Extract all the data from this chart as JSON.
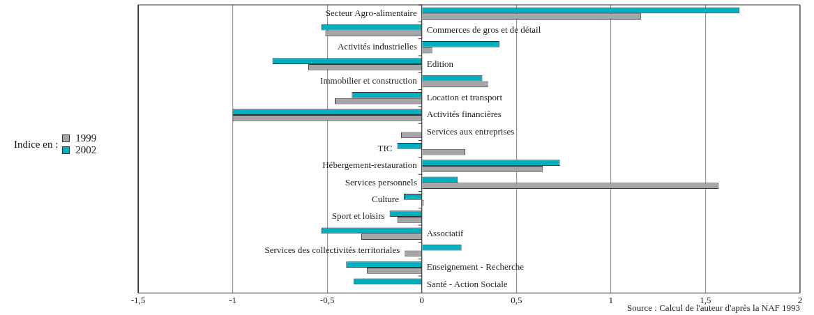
{
  "chart_data": {
    "type": "bar",
    "orientation": "horizontal",
    "categories": [
      "Secteur Agro-alimentaire",
      "Commerces de gros et de détail",
      "Activités industrielles",
      "Edition",
      "Immobilier et construction",
      "Location et transport",
      "Activités financières",
      "Services aux entreprises",
      "TIC",
      "Hébergement-restauration",
      "Services personnels",
      "Culture",
      "Sport et loisirs",
      "Associatif",
      "Services des collectivités territoriales",
      "Enseignement - Recherche",
      "Santé - Action Sociale"
    ],
    "series": [
      {
        "name": "2002",
        "color": "#00b0c0",
        "values": [
          1.68,
          -0.53,
          0.41,
          -0.79,
          0.32,
          -0.37,
          -1.0,
          null,
          -0.13,
          0.73,
          0.19,
          -0.095,
          -0.17,
          -0.53,
          0.21,
          -0.4,
          -0.36
        ]
      },
      {
        "name": "1999",
        "color": "#a6a6a8",
        "values": [
          1.16,
          -0.51,
          0.055,
          -0.6,
          0.35,
          -0.46,
          -1.0,
          -0.11,
          0.23,
          0.64,
          1.57,
          0.01,
          -0.13,
          -0.32,
          -0.09,
          -0.29,
          null
        ]
      }
    ],
    "xlim": [
      -1.5,
      2
    ],
    "xticks": [
      {
        "value": -1.5,
        "label": "-1,5"
      },
      -1,
      {
        "value": -0.5,
        "label": "-0,5"
      },
      0,
      {
        "value": 0.5,
        "label": "0,5"
      },
      1,
      {
        "value": 1.5,
        "label": "1,5"
      },
      2
    ],
    "grid": "x",
    "legend": "left",
    "legend_title": "Indice en :",
    "annotations": [
      "Source : Calcul de l'auteur d'après la NAF 1993"
    ]
  }
}
